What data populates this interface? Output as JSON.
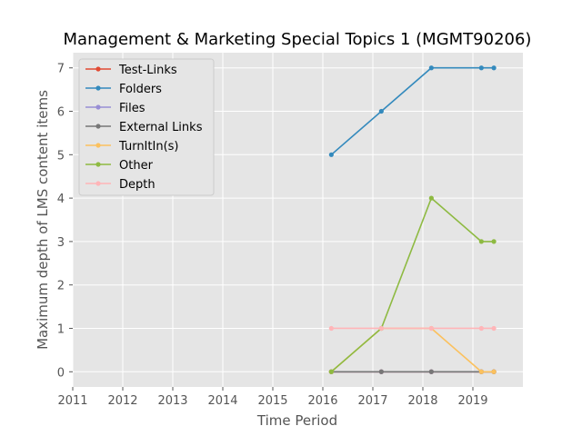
{
  "chart_data": {
    "type": "line",
    "title": "Management & Marketing Special Topics 1 (MGMT90206)",
    "xlabel": "Time Period",
    "ylabel": "Maximum depth of LMS content items",
    "xlim": [
      2011,
      2020
    ],
    "ylim": [
      -0.35,
      7.35
    ],
    "xticks": [
      "2011",
      "2012",
      "2013",
      "2014",
      "2015",
      "2016",
      "2017",
      "2018",
      "2019"
    ],
    "yticks": [
      "0",
      "1",
      "2",
      "3",
      "4",
      "5",
      "6",
      "7"
    ],
    "grid": true,
    "legend_position": "top-left",
    "series": [
      {
        "name": "Test-Links",
        "color": "#E24A33",
        "x": [
          2016.17,
          2017.17,
          2018.17,
          2019.17,
          2019.42
        ],
        "y": [
          0,
          0,
          0,
          0,
          0
        ]
      },
      {
        "name": "Folders",
        "color": "#348ABD",
        "x": [
          2016.17,
          2017.17,
          2018.17,
          2019.17,
          2019.42
        ],
        "y": [
          5,
          6,
          7,
          7,
          7
        ]
      },
      {
        "name": "Files",
        "color": "#988ED5",
        "x": [
          2016.17,
          2017.17,
          2018.17,
          2019.17,
          2019.42
        ],
        "y": [
          0,
          0,
          0,
          0,
          0
        ]
      },
      {
        "name": "External Links",
        "color": "#777777",
        "x": [
          2016.17,
          2017.17,
          2018.17,
          2019.17,
          2019.42
        ],
        "y": [
          0,
          0,
          0,
          0,
          0
        ]
      },
      {
        "name": "TurnItIn(s)",
        "color": "#FBC15E",
        "x": [
          2016.17,
          2017.17,
          2018.17,
          2019.17,
          2019.42
        ],
        "y": [
          0,
          1,
          1,
          0,
          0
        ]
      },
      {
        "name": "Other",
        "color": "#8EBA42",
        "x": [
          2016.17,
          2017.17,
          2018.17,
          2019.17,
          2019.42
        ],
        "y": [
          0,
          1,
          4,
          3,
          3
        ]
      },
      {
        "name": "Depth",
        "color": "#FFB5B8",
        "x": [
          2016.17,
          2017.17,
          2018.17,
          2019.17,
          2019.42
        ],
        "y": [
          1,
          1,
          1,
          1,
          1
        ]
      }
    ]
  }
}
